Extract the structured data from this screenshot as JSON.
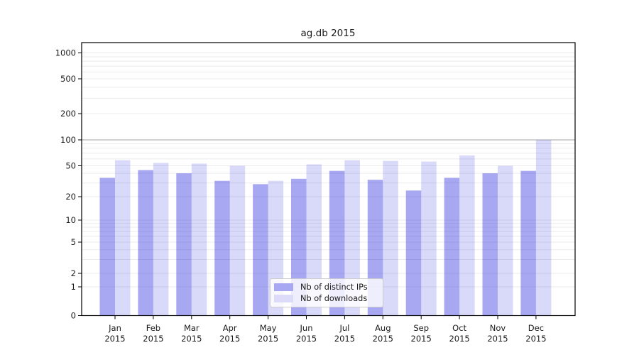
{
  "chart_data": {
    "type": "bar",
    "title": "ag.db 2015",
    "categories": [
      "Jan 2015",
      "Feb 2015",
      "Mar 2015",
      "Apr 2015",
      "May 2015",
      "Jun 2015",
      "Jul 2015",
      "Aug 2015",
      "Sep 2015",
      "Oct 2015",
      "Nov 2015",
      "Dec 2015"
    ],
    "series": [
      {
        "name": "Nb of distinct IPs",
        "color": "#a7a7f2",
        "values": [
          35,
          44,
          40,
          32,
          29,
          34,
          43,
          33,
          24,
          35,
          40,
          43
        ]
      },
      {
        "name": "Nb of downloads",
        "color": "#dcdcf8",
        "values": [
          58,
          54,
          53,
          50,
          32,
          52,
          58,
          57,
          56,
          66,
          50,
          100
        ]
      }
    ],
    "yscale": "symlog",
    "yticks": [
      0,
      1,
      2,
      5,
      10,
      20,
      50,
      100,
      200,
      500,
      1000
    ],
    "ylim": [
      0,
      1000
    ],
    "grid": true,
    "legend_position": "lower center",
    "reference_line_y": 100
  },
  "colors": {
    "ips_bar": "#a7a7f2",
    "downloads_bar": "#dcdcf8",
    "grid_line": "#ebebeb",
    "reference_line": "#b3b3b3",
    "axis": "#000000",
    "background": "#ffffff"
  }
}
